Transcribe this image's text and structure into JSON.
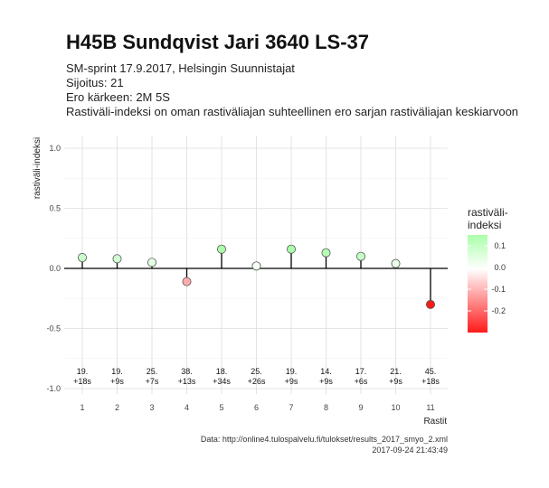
{
  "header": {
    "title": "H45B Sundqvist Jari 3640 LS-37",
    "line1": "SM-sprint 17.9.2017, Helsingin Suunnistajat",
    "line2": "Sijoitus: 21",
    "line3": "Ero kärkeen: 2M 5S",
    "line4": "Rastiväli-indeksi on oman rastiväliajan suhteellinen ero sarjan rastiväliajan keskiarvoon"
  },
  "caption": {
    "source": "Data: http://online4.tulospalvelu.fi/tulokset/results_2017_smyo_2.xml",
    "timestamp": "2017-09-24 21:43:49"
  },
  "chart_data": {
    "type": "scatter",
    "title": "H45B Sundqvist Jari 3640 LS-37",
    "xlabel": "Rastit",
    "ylabel": "rastiväli-indeksi",
    "x": [
      1,
      2,
      3,
      4,
      5,
      6,
      7,
      8,
      9,
      10,
      11
    ],
    "y": [
      0.09,
      0.08,
      0.05,
      -0.11,
      0.16,
      0.02,
      0.16,
      0.13,
      0.1,
      0.04,
      -0.3
    ],
    "point_labels": [
      [
        "19.",
        "+18s"
      ],
      [
        "19.",
        "+9s"
      ],
      [
        "25.",
        "+7s"
      ],
      [
        "38.",
        "+13s"
      ],
      [
        "18.",
        "+34s"
      ],
      [
        "25.",
        "+26s"
      ],
      [
        "19.",
        "+9s"
      ],
      [
        "14.",
        "+9s"
      ],
      [
        "17.",
        "+6s"
      ],
      [
        "21.",
        "+9s"
      ],
      [
        "45.",
        "+18s"
      ]
    ],
    "ylim": [
      -1.0,
      1.0
    ],
    "yticks": [
      "-1.0",
      "-0.5",
      "0.0",
      "0.5",
      "1.0"
    ],
    "xticks": [
      "1",
      "2",
      "3",
      "4",
      "5",
      "6",
      "7",
      "8",
      "9",
      "10",
      "11"
    ],
    "grid": true,
    "legend": {
      "title_line1": "rastiväli-",
      "title_line2": "indeksi",
      "labels": [
        "0.1",
        "0.0",
        "-0.1",
        "-0.2"
      ],
      "placement": "right",
      "color_high": "#aaffaa",
      "color_mid": "#ffffff",
      "color_low": "#ff1a1a"
    }
  }
}
